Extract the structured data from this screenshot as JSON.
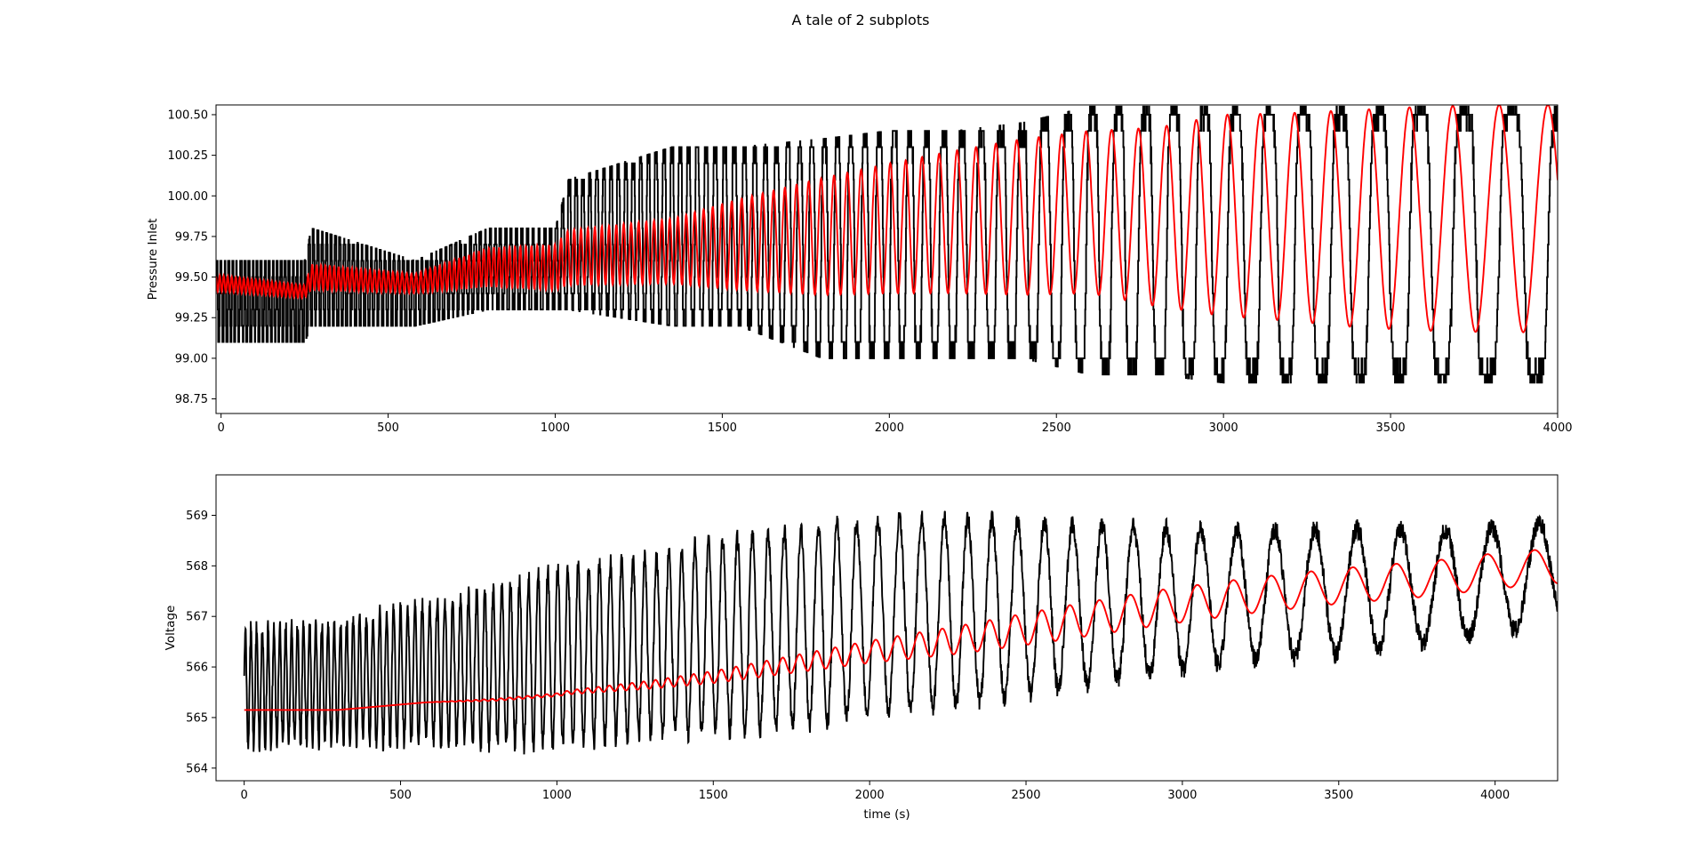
{
  "figure": {
    "suptitle": "A tale of 2 subplots",
    "background": "#ffffff"
  },
  "chart_data": [
    {
      "type": "line",
      "title": "",
      "xlabel": "",
      "ylabel": "Pressure Inlet",
      "xlim": [
        -15,
        4000
      ],
      "ylim": [
        98.66,
        100.56
      ],
      "xticks": [
        0,
        500,
        1000,
        1500,
        2000,
        2500,
        3000,
        3500,
        4000
      ],
      "xtick_labels": [
        "0",
        "500",
        "1000",
        "1500",
        "2000",
        "2500",
        "3000",
        "3500",
        "4000"
      ],
      "yticks": [
        98.75,
        99.0,
        99.25,
        99.5,
        99.75,
        100.0,
        100.25,
        100.5
      ],
      "ytick_labels": [
        "98.75",
        "99.00",
        "99.25",
        "99.50",
        "99.75",
        "100.00",
        "100.25",
        "100.50"
      ],
      "grid": false,
      "legend": "none",
      "series": [
        {
          "color": "#000000",
          "style": "quantized step signal, step 0.1",
          "x": [
            0,
            250,
            270,
            580,
            800,
            1000,
            1040,
            1350,
            1550,
            1800,
            2000,
            2200,
            2400,
            2600,
            2800,
            3000,
            3200,
            3400,
            3600,
            3800,
            4000
          ],
          "low": [
            99.1,
            99.1,
            99.2,
            99.2,
            99.3,
            99.3,
            99.3,
            99.2,
            99.2,
            99.0,
            99.0,
            99.0,
            99.0,
            98.9,
            98.9,
            98.85,
            98.85,
            98.85,
            98.85,
            98.85,
            98.85
          ],
          "high": [
            99.6,
            99.6,
            99.8,
            99.6,
            99.8,
            99.8,
            100.1,
            100.3,
            100.3,
            100.35,
            100.4,
            100.4,
            100.45,
            100.55,
            100.55,
            100.55,
            100.55,
            100.55,
            100.55,
            100.55,
            100.55
          ],
          "period": [
            12,
            12,
            13,
            14,
            15,
            18,
            20,
            24,
            30,
            38,
            45,
            55,
            65,
            75,
            85,
            95,
            105,
            115,
            128,
            142,
            150
          ]
        },
        {
          "color": "#ff0000",
          "style": "smooth filtered signal",
          "x": [
            0,
            250,
            270,
            580,
            800,
            1000,
            1040,
            1350,
            1550,
            1800,
            2000,
            2200,
            2400,
            2600,
            2800,
            3000,
            3200,
            3400,
            3600,
            3800,
            4000
          ],
          "center": [
            99.46,
            99.41,
            99.5,
            99.46,
            99.56,
            99.56,
            99.62,
            99.66,
            99.7,
            99.75,
            99.8,
            99.84,
            99.87,
            99.9,
            99.87,
            99.88,
            99.87,
            99.86,
            99.86,
            99.86,
            99.86
          ],
          "amplitude": [
            0.05,
            0.04,
            0.08,
            0.06,
            0.12,
            0.14,
            0.17,
            0.2,
            0.28,
            0.36,
            0.4,
            0.44,
            0.48,
            0.5,
            0.55,
            0.62,
            0.64,
            0.67,
            0.69,
            0.7,
            0.7
          ],
          "period": [
            12,
            12,
            13,
            14,
            15,
            18,
            20,
            24,
            30,
            38,
            45,
            55,
            65,
            75,
            85,
            95,
            105,
            115,
            128,
            142,
            150
          ]
        }
      ]
    },
    {
      "type": "line",
      "title": "",
      "xlabel": "time (s)",
      "ylabel": "Voltage",
      "xlim": [
        -90,
        4200
      ],
      "ylim": [
        563.75,
        569.8
      ],
      "xticks": [
        0,
        500,
        1000,
        1500,
        2000,
        2500,
        3000,
        3500,
        4000
      ],
      "xtick_labels": [
        "0",
        "500",
        "1000",
        "1500",
        "2000",
        "2500",
        "3000",
        "3500",
        "4000"
      ],
      "yticks": [
        564,
        565,
        566,
        567,
        568,
        569
      ],
      "ytick_labels": [
        "564",
        "565",
        "566",
        "567",
        "568",
        "569"
      ],
      "grid": false,
      "legend": "none",
      "series": [
        {
          "color": "#000000",
          "style": "noisy oscillating signal",
          "x": [
            0,
            300,
            600,
            800,
            1000,
            1300,
            1500,
            1800,
            2000,
            2300,
            2600,
            2900,
            3200,
            3500,
            3800,
            4000,
            4200
          ],
          "center": [
            565.6,
            565.7,
            565.9,
            566.0,
            566.2,
            566.4,
            566.6,
            566.8,
            567.0,
            567.1,
            567.2,
            567.3,
            567.4,
            567.5,
            567.6,
            567.7,
            567.9
          ],
          "amplitude": [
            1.15,
            1.2,
            1.4,
            1.55,
            1.75,
            1.75,
            1.9,
            1.95,
            1.9,
            1.85,
            1.65,
            1.45,
            1.3,
            1.25,
            1.1,
            1.05,
            1.0
          ],
          "period": [
            18,
            20,
            24,
            27,
            32,
            38,
            45,
            55,
            68,
            75,
            90,
            105,
            120,
            135,
            145,
            150,
            155
          ]
        },
        {
          "color": "#ff0000",
          "style": "smooth filtered signal",
          "x": [
            0,
            300,
            580,
            800,
            1000,
            1040,
            1300,
            1500,
            1800,
            2000,
            2300,
            2600,
            2900,
            3200,
            3500,
            3800,
            4000,
            4200
          ],
          "center": [
            565.15,
            565.15,
            565.3,
            565.35,
            565.45,
            565.5,
            565.65,
            565.8,
            566.1,
            566.3,
            566.55,
            566.85,
            567.15,
            567.4,
            567.6,
            567.75,
            567.9,
            568.0
          ],
          "amplitude": [
            0,
            0,
            0,
            0.02,
            0.03,
            0.04,
            0.08,
            0.12,
            0.18,
            0.22,
            0.28,
            0.33,
            0.35,
            0.35,
            0.35,
            0.35,
            0.35,
            0.35
          ],
          "period": [
            18,
            20,
            24,
            27,
            32,
            33,
            38,
            45,
            55,
            68,
            75,
            90,
            105,
            120,
            135,
            145,
            150,
            155
          ]
        }
      ]
    }
  ]
}
